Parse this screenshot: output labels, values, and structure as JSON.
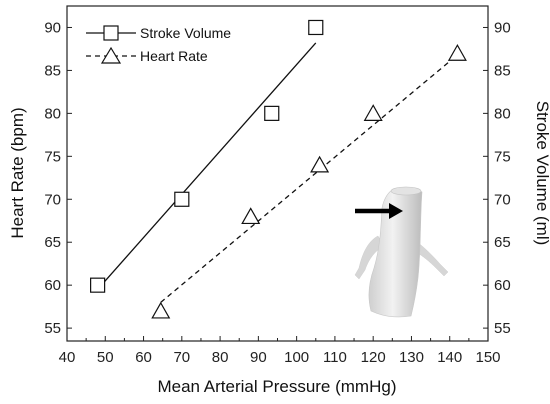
{
  "chart_data": {
    "type": "scatter",
    "xlabel": "Mean Arterial Pressure (mmHg)",
    "ylabel_left": "Heart Rate (bpm)",
    "ylabel_right": "Stroke Volume (ml)",
    "xlim": [
      40,
      150
    ],
    "ylim": [
      53.5,
      92.5
    ],
    "xticks": [
      "40",
      "50",
      "60",
      "70",
      "80",
      "90",
      "100",
      "110",
      "120",
      "130",
      "140",
      "150"
    ],
    "yticks": [
      "55",
      "60",
      "65",
      "70",
      "75",
      "80",
      "85",
      "90"
    ],
    "grid": false,
    "legend_position": "top-left",
    "series": [
      {
        "name": "Stroke Volume",
        "marker": "square",
        "line": "solid",
        "axis": "right",
        "points": [
          [
            48,
            60
          ],
          [
            70,
            70
          ],
          [
            93.5,
            80
          ],
          [
            105,
            90
          ]
        ],
        "fit": [
          [
            48,
            59.5
          ],
          [
            105,
            88.2
          ]
        ]
      },
      {
        "name": "Heart Rate",
        "marker": "triangle",
        "line": "dashed",
        "axis": "left",
        "points": [
          [
            64.5,
            57
          ],
          [
            88,
            68
          ],
          [
            106,
            74
          ],
          [
            120,
            80
          ],
          [
            142,
            87
          ]
        ],
        "fit": [
          [
            64.5,
            58
          ],
          [
            142,
            86.8
          ]
        ]
      }
    ],
    "inset": {
      "kind": "3d-vessel-render",
      "arrow": "black"
    }
  }
}
